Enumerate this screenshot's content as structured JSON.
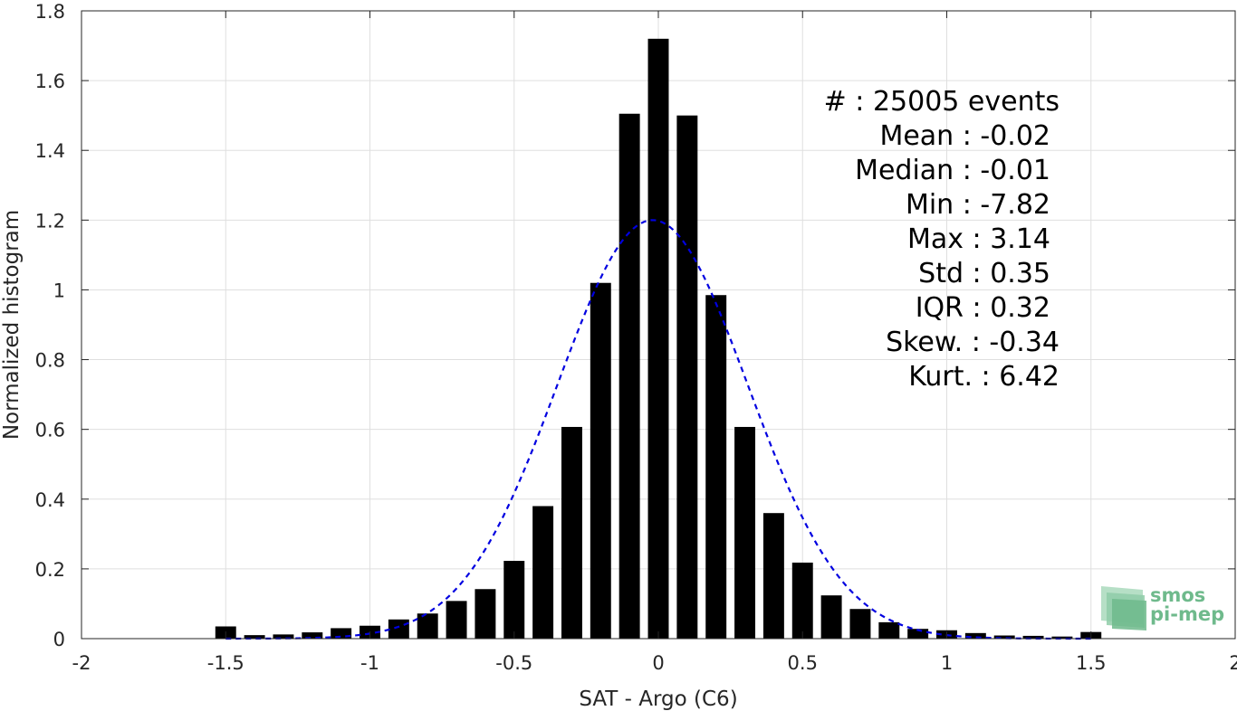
{
  "chart_data": {
    "type": "bar",
    "xlabel": "SAT - Argo (C6)",
    "ylabel": "Normalized histogram",
    "xlim": [
      -2,
      2
    ],
    "ylim": [
      0,
      1.8
    ],
    "grid": true,
    "x_ticks": [
      -2,
      -1.5,
      -1,
      -0.5,
      0,
      0.5,
      1,
      1.5,
      2
    ],
    "x_tick_labels": [
      "-2",
      "-1.5",
      "-1",
      "-0.5",
      "0",
      "0.5",
      "1",
      "1.5",
      "2"
    ],
    "y_ticks": [
      0,
      0.2,
      0.4,
      0.6,
      0.8,
      1,
      1.2,
      1.4,
      1.6,
      1.8
    ],
    "y_tick_labels": [
      "0",
      "0.2",
      "0.4",
      "0.6",
      "0.8",
      "1",
      "1.2",
      "1.4",
      "1.6",
      "1.8"
    ],
    "bar_color": "#000000",
    "bins": {
      "centers": [
        -1.5,
        -1.4,
        -1.3,
        -1.2,
        -1.1,
        -1.0,
        -0.9,
        -0.8,
        -0.7,
        -0.6,
        -0.5,
        -0.4,
        -0.3,
        -0.2,
        -0.1,
        0.0,
        0.1,
        0.2,
        0.3,
        0.4,
        0.5,
        0.6,
        0.7,
        0.8,
        0.9,
        1.0,
        1.1,
        1.2,
        1.3,
        1.4,
        1.5
      ],
      "values": [
        0.035,
        0.01,
        0.012,
        0.018,
        0.03,
        0.037,
        0.055,
        0.072,
        0.108,
        0.142,
        0.223,
        0.38,
        0.607,
        1.02,
        1.505,
        1.72,
        1.5,
        0.985,
        0.607,
        0.36,
        0.218,
        0.124,
        0.085,
        0.047,
        0.028,
        0.024,
        0.016,
        0.009,
        0.008,
        0.006,
        0.019
      ]
    },
    "fit": {
      "type": "gaussian",
      "mean": -0.02,
      "std": 0.33,
      "peak": 1.2,
      "color": "#0000e0",
      "style": "dashed"
    }
  },
  "stats": {
    "events": "#  : 25005 events",
    "mean": "Mean : -0.02",
    "median": "Median : -0.01",
    "min": "Min : -7.82",
    "max": "Max : 3.14",
    "std": "Std : 0.35",
    "iqr": "IQR : 0.32",
    "skew": "Skew. : -0.34",
    "kurt": "Kurt. : 6.42"
  },
  "logo": {
    "line1": "smos",
    "line2": "pi-mep",
    "color": "#6fba8c"
  }
}
